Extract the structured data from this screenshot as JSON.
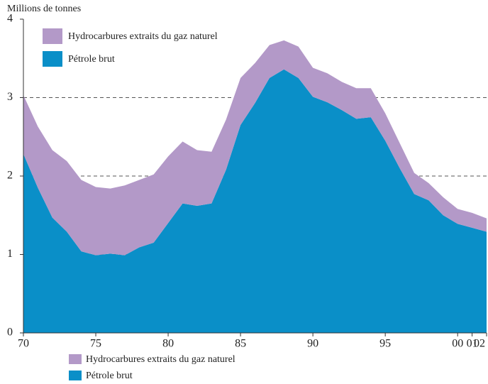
{
  "chart_data": {
    "type": "stacked_area",
    "ylabel": "Millions de tonnes",
    "categories": [
      "70",
      null,
      null,
      null,
      null,
      "75",
      null,
      null,
      null,
      null,
      "80",
      null,
      null,
      null,
      null,
      "85",
      null,
      null,
      null,
      null,
      "90",
      null,
      null,
      null,
      null,
      "95",
      null,
      null,
      null,
      null,
      "00",
      "01",
      "02"
    ],
    "series": [
      {
        "name": "Pétrole brut",
        "color": "#0a8fc8",
        "values": [
          2.28,
          1.85,
          1.47,
          1.29,
          1.04,
          0.99,
          1.01,
          0.99,
          1.09,
          1.15,
          1.4,
          1.65,
          1.62,
          1.65,
          2.08,
          2.65,
          2.93,
          3.25,
          3.36,
          3.25,
          3.01,
          2.94,
          2.84,
          2.73,
          2.75,
          2.45,
          2.1,
          1.77,
          1.69,
          1.5,
          1.39,
          1.34,
          1.29
        ]
      },
      {
        "name": "Hydrocarbures extraits du gaz naturel",
        "color": "#b399c8",
        "values": [
          0.75,
          0.78,
          0.86,
          0.9,
          0.91,
          0.87,
          0.83,
          0.89,
          0.86,
          0.87,
          0.85,
          0.79,
          0.71,
          0.66,
          0.64,
          0.6,
          0.51,
          0.42,
          0.37,
          0.4,
          0.37,
          0.37,
          0.36,
          0.39,
          0.37,
          0.35,
          0.32,
          0.27,
          0.22,
          0.23,
          0.19,
          0.19,
          0.17
        ]
      }
    ],
    "ylim": [
      0,
      4
    ],
    "yticks": [
      0,
      1,
      2,
      3,
      4
    ],
    "grid": true
  }
}
